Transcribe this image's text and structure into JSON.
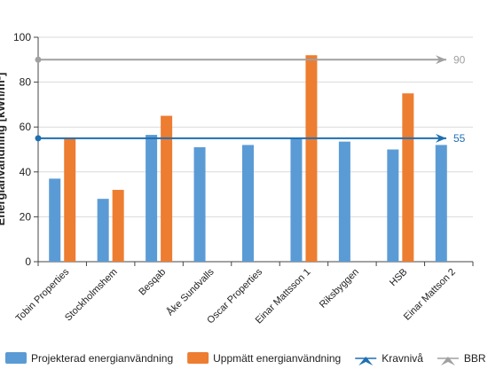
{
  "chart_data": {
    "type": "bar",
    "categories": [
      "Tobin Properties",
      "Stockholmshem",
      "Besqab",
      "Åke Sundvalls",
      "Oscar Properties",
      "Einar Mattsson 1",
      "Riksbyggen",
      "HSB",
      "Einar Mattson 2"
    ],
    "series": [
      {
        "name": "Projekterad energianvändning",
        "color": "#5b9bd5",
        "values": [
          37,
          28,
          56.5,
          51,
          52,
          55,
          53.5,
          50,
          52
        ]
      },
      {
        "name": "Uppmätt energianvändning",
        "color": "#ed7d31",
        "values": [
          55,
          32,
          65,
          null,
          null,
          92,
          null,
          75,
          null
        ]
      }
    ],
    "reference_lines": [
      {
        "name": "Kravnivå",
        "value": 55,
        "label": "55",
        "color": "#1f6fb2"
      },
      {
        "name": "BBR",
        "value": 90,
        "label": "90",
        "color": "#a0a0a0"
      }
    ],
    "ylabel": "Energianvändning [kWh/m²]",
    "ylim": [
      0,
      100
    ],
    "yticks": [
      0,
      20,
      40,
      60,
      80,
      100
    ],
    "grid": true,
    "legend_position": "bottom"
  }
}
